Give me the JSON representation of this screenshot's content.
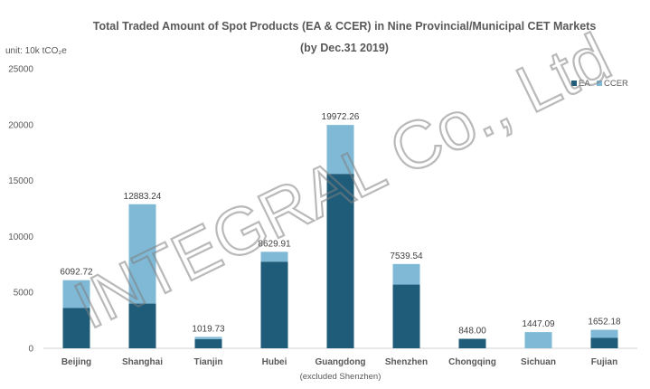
{
  "chart_data": {
    "type": "bar",
    "stacked": true,
    "title": "Total Traded Amount of Spot Products (EA & CCER) in Nine Provincial/Municipal CET Markets",
    "subtitle": "(by Dec.31 2019)",
    "ylabel": "unit: 10k tCO₂e",
    "xlabel": "",
    "ylim": [
      0,
      25000
    ],
    "yticks": [
      0,
      5000,
      10000,
      15000,
      20000,
      25000
    ],
    "grid": false,
    "legend_position": "top-right",
    "categories": [
      "Beijing",
      "Shanghai",
      "Tianjin",
      "Hubei",
      "Guangdong",
      "Shenzhen",
      "Chongqing",
      "Sichuan",
      "Fujian"
    ],
    "category_notes": [
      "",
      "",
      "",
      "",
      "(excluded Shenzhen)",
      "",
      "",
      "",
      ""
    ],
    "series": [
      {
        "name": "EA",
        "color": "#1f5c7a",
        "values": [
          3600,
          4000,
          820,
          7750,
          15600,
          5700,
          848.0,
          0,
          930
        ]
      },
      {
        "name": "CCER",
        "color": "#7fb9d6",
        "values": [
          2492.72,
          8883.24,
          199.73,
          879.91,
          4372.26,
          1839.54,
          0,
          1447.09,
          722.18
        ]
      }
    ],
    "totals": [
      6092.72,
      12883.24,
      1019.73,
      8629.91,
      19972.26,
      7539.54,
      848.0,
      1447.09,
      1652.18
    ],
    "total_labels": [
      "6092.72",
      "12883.24",
      "1019.73",
      "8629.91",
      "19972.26",
      "7539.54",
      "848.00",
      "1447.09",
      "1652.18"
    ]
  },
  "watermark": "INTEGRAL Co., Ltd"
}
